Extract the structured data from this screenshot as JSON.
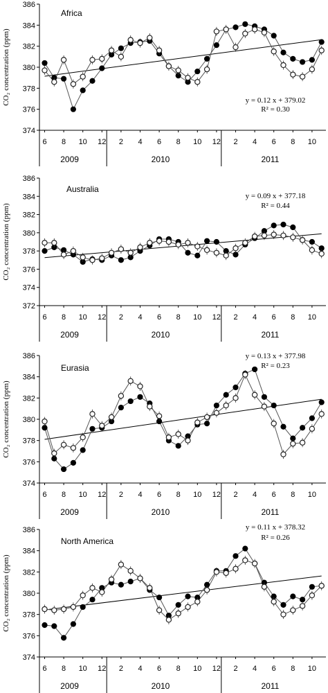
{
  "chart_data": [
    {
      "type": "line",
      "title": "Africa",
      "ylabel": "CO₂ concentration (ppm)",
      "ylim": [
        374,
        386
      ],
      "yticks": [
        374,
        376,
        378,
        380,
        382,
        384,
        386
      ],
      "x_tick_labels": [
        "6",
        "8",
        "10",
        "12",
        "2",
        "4",
        "6",
        "8",
        "10",
        "12",
        "2",
        "4",
        "6",
        "8",
        "10"
      ],
      "years": [
        "2009",
        "2010",
        "2011"
      ],
      "months": [
        "2009-06",
        "2009-07",
        "2009-08",
        "2009-09",
        "2009-10",
        "2009-11",
        "2009-12",
        "2010-01",
        "2010-02",
        "2010-03",
        "2010-04",
        "2010-05",
        "2010-06",
        "2010-07",
        "2010-08",
        "2010-09",
        "2010-10",
        "2010-11",
        "2010-12",
        "2011-01",
        "2011-02",
        "2011-03",
        "2011-04",
        "2011-05",
        "2011-06",
        "2011-07",
        "2011-08",
        "2011-09",
        "2011-10",
        "2011-11"
      ],
      "series": [
        {
          "marker": "filled",
          "values": [
            380.4,
            379.0,
            378.9,
            376.0,
            377.8,
            378.7,
            379.9,
            381.2,
            381.8,
            382.3,
            382.4,
            382.5,
            381.3,
            380.1,
            379.2,
            378.6,
            379.6,
            380.8,
            382.1,
            383.6,
            383.8,
            384.1,
            383.9,
            383.6,
            383.0,
            381.4,
            380.8,
            380.5,
            380.7,
            382.4
          ]
        },
        {
          "marker": "open",
          "values": [
            379.7,
            378.6,
            380.7,
            378.4,
            379.1,
            380.7,
            380.8,
            381.6,
            381.0,
            382.6,
            382.3,
            382.8,
            381.6,
            380.1,
            379.7,
            379.0,
            378.6,
            379.8,
            383.4,
            383.6,
            381.9,
            383.2,
            383.6,
            383.3,
            381.5,
            380.2,
            379.3,
            379.1,
            379.8,
            381.6
          ]
        }
      ],
      "trend": {
        "slope": 0.12,
        "intercept": 379.02
      },
      "equation": "y = 0.12 x + 379.02",
      "r2": "R² = 0.30"
    },
    {
      "type": "line",
      "title": "Australia",
      "ylabel": "CO₂ concentration (ppm)",
      "ylim": [
        372,
        386
      ],
      "yticks": [
        372,
        374,
        376,
        378,
        380,
        382,
        384,
        386
      ],
      "x_tick_labels": [
        "6",
        "8",
        "10",
        "12",
        "2",
        "4",
        "6",
        "8",
        "10",
        "12",
        "2",
        "4",
        "6",
        "8",
        "10"
      ],
      "years": [
        "2009",
        "2010",
        "2011"
      ],
      "months": [
        "2009-06",
        "2009-07",
        "2009-08",
        "2009-09",
        "2009-10",
        "2009-11",
        "2009-12",
        "2010-01",
        "2010-02",
        "2010-03",
        "2010-04",
        "2010-05",
        "2010-06",
        "2010-07",
        "2010-08",
        "2010-09",
        "2010-10",
        "2010-11",
        "2010-12",
        "2011-01",
        "2011-02",
        "2011-03",
        "2011-04",
        "2011-05",
        "2011-06",
        "2011-07",
        "2011-08",
        "2011-09",
        "2011-10",
        "2011-11"
      ],
      "series": [
        {
          "marker": "filled",
          "values": [
            378.0,
            378.4,
            378.1,
            377.6,
            376.8,
            377.1,
            377.0,
            377.5,
            377.0,
            377.3,
            378.0,
            378.6,
            379.3,
            379.3,
            379.0,
            377.8,
            377.5,
            379.1,
            379.0,
            378.0,
            377.6,
            378.7,
            379.4,
            380.2,
            380.8,
            380.9,
            380.6,
            379.2,
            379.0,
            378.3
          ]
        },
        {
          "marker": "open",
          "values": [
            378.9,
            378.9,
            377.6,
            378.0,
            377.3,
            377.0,
            377.2,
            377.8,
            378.2,
            377.8,
            378.4,
            378.9,
            379.1,
            379.0,
            378.7,
            378.9,
            378.5,
            378.1,
            377.8,
            377.5,
            378.3,
            378.9,
            379.6,
            379.7,
            379.8,
            379.7,
            379.5,
            379.2,
            378.1,
            377.7
          ]
        }
      ],
      "trend": {
        "slope": 0.09,
        "intercept": 377.18
      },
      "equation": "y = 0.09 x + 377.18",
      "r2": "R² = 0.44"
    },
    {
      "type": "line",
      "title": "Eurasia",
      "ylabel": "CO₂ concentration (ppm)",
      "ylim": [
        374,
        386
      ],
      "yticks": [
        374,
        376,
        378,
        380,
        382,
        384,
        386
      ],
      "x_tick_labels": [
        "6",
        "8",
        "10",
        "12",
        "2",
        "4",
        "6",
        "8",
        "10",
        "12",
        "2",
        "4",
        "6",
        "8",
        "10"
      ],
      "years": [
        "2009",
        "2010",
        "2011"
      ],
      "months": [
        "2009-06",
        "2009-07",
        "2009-08",
        "2009-09",
        "2009-10",
        "2009-11",
        "2009-12",
        "2010-01",
        "2010-02",
        "2010-03",
        "2010-04",
        "2010-05",
        "2010-06",
        "2010-07",
        "2010-08",
        "2010-09",
        "2010-10",
        "2010-11",
        "2010-12",
        "2011-01",
        "2011-02",
        "2011-03",
        "2011-04",
        "2011-05",
        "2011-06",
        "2011-07",
        "2011-08",
        "2011-09",
        "2011-10",
        "2011-11"
      ],
      "series": [
        {
          "marker": "filled",
          "values": [
            379.2,
            376.3,
            375.3,
            375.9,
            377.1,
            379.1,
            379.2,
            379.8,
            381.1,
            381.7,
            382.1,
            381.5,
            379.8,
            378.0,
            377.5,
            378.4,
            379.5,
            379.6,
            381.3,
            382.3,
            383.0,
            384.3,
            384.7,
            382.1,
            381.3,
            379.3,
            378.2,
            379.2,
            380.1,
            381.6
          ]
        },
        {
          "marker": "open",
          "values": [
            379.8,
            376.8,
            377.6,
            377.3,
            378.3,
            380.5,
            379.4,
            380.2,
            382.2,
            383.6,
            383.1,
            381.2,
            380.3,
            378.3,
            378.6,
            378.0,
            379.7,
            380.2,
            380.6,
            381.3,
            382.0,
            384.2,
            382.3,
            381.2,
            379.6,
            376.7,
            377.7,
            377.8,
            379.1,
            380.5
          ]
        }
      ],
      "trend": {
        "slope": 0.13,
        "intercept": 377.98
      },
      "equation": "y = 0.13 x + 377.98",
      "r2": "R² = 0.23"
    },
    {
      "type": "line",
      "title": "North America",
      "ylabel": "CO₂ concentration (ppm)",
      "ylim": [
        374,
        386
      ],
      "yticks": [
        374,
        376,
        378,
        380,
        382,
        384,
        386
      ],
      "x_tick_labels": [
        "6",
        "8",
        "10",
        "12",
        "2",
        "4",
        "6",
        "8",
        "10",
        "12",
        "2",
        "4",
        "6",
        "8",
        "10"
      ],
      "years": [
        "2009",
        "2010",
        "2011"
      ],
      "months": [
        "2009-06",
        "2009-07",
        "2009-08",
        "2009-09",
        "2009-10",
        "2009-11",
        "2009-12",
        "2010-01",
        "2010-02",
        "2010-03",
        "2010-04",
        "2010-05",
        "2010-06",
        "2010-07",
        "2010-08",
        "2010-09",
        "2010-10",
        "2010-11",
        "2010-12",
        "2011-01",
        "2011-02",
        "2011-03",
        "2011-04",
        "2011-05",
        "2011-06",
        "2011-07",
        "2011-08",
        "2011-09",
        "2011-10",
        "2011-11"
      ],
      "series": [
        {
          "marker": "filled",
          "values": [
            377.0,
            376.9,
            375.8,
            377.1,
            378.7,
            379.4,
            380.5,
            381.0,
            380.8,
            381.1,
            381.4,
            380.3,
            379.6,
            377.9,
            378.9,
            379.7,
            379.6,
            380.8,
            382.1,
            382.1,
            383.5,
            384.2,
            382.8,
            381.0,
            379.7,
            378.9,
            379.7,
            379.4,
            380.6,
            380.7
          ]
        },
        {
          "marker": "open",
          "values": [
            378.5,
            378.4,
            378.5,
            378.7,
            379.8,
            380.5,
            380.1,
            381.3,
            382.7,
            382.1,
            381.4,
            380.5,
            378.4,
            377.5,
            378.1,
            378.7,
            379.2,
            380.3,
            382.0,
            381.9,
            382.3,
            383.1,
            382.8,
            380.6,
            379.2,
            378.0,
            378.4,
            378.8,
            379.8,
            380.7
          ]
        }
      ],
      "trend": {
        "slope": 0.11,
        "intercept": 378.32
      },
      "equation": "y = 0.11 x + 378.32",
      "r2": "R² = 0.26"
    }
  ]
}
